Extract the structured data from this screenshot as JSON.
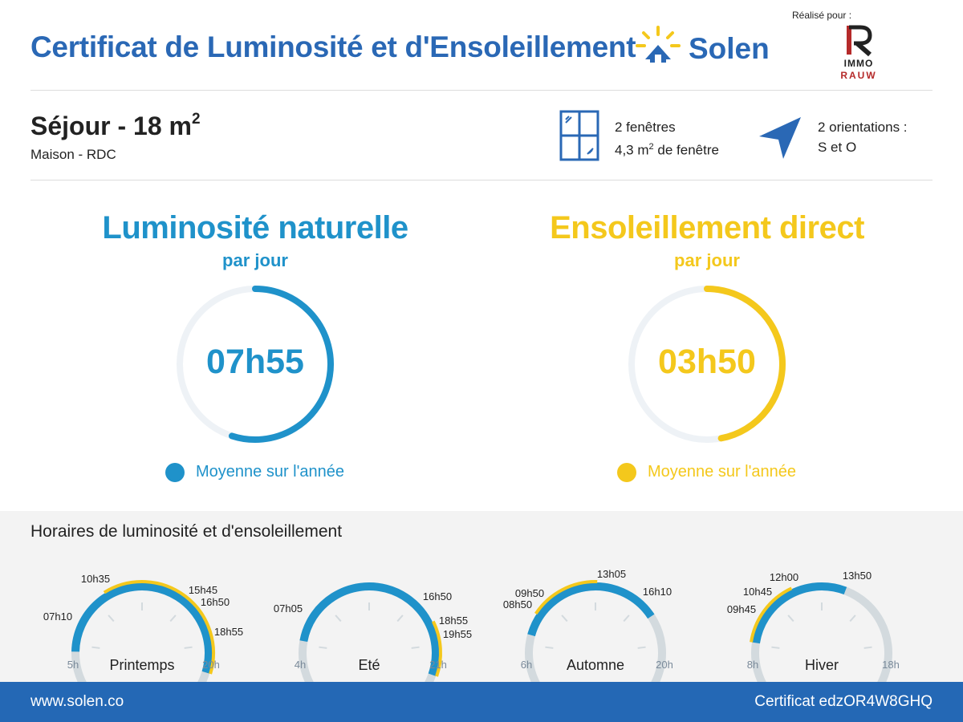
{
  "header": {
    "title": "Certificat de Luminosité et d'Ensoleillement",
    "brand": "Solen",
    "realise_pour": "Réalisé pour :",
    "client_logo_line1": "IMMO",
    "client_logo_line2": "RAUW"
  },
  "room": {
    "name": "Séjour - 18 m",
    "name_sup": "2",
    "sub": "Maison - RDC"
  },
  "windows": {
    "line1": "2 fenêtres",
    "line2_pre": "4,3 m",
    "line2_sup": "2",
    "line2_post": " de fenêtre"
  },
  "orientation": {
    "line1": "2 orientations :",
    "line2": "S et O"
  },
  "luminosite": {
    "title": "Luminosité naturelle",
    "sub": "par jour",
    "value": "07h55",
    "fraction": 0.55,
    "legend": "Moyenne sur l'année",
    "color": "#1f92ca"
  },
  "ensoleillement": {
    "title": "Ensoleillement direct",
    "sub": "par jour",
    "value": "03h50",
    "fraction": 0.47,
    "legend": "Moyenne sur l'année",
    "color": "#f4c81c"
  },
  "schedule": {
    "title": "Horaires de luminosité et d'ensoleillement",
    "seasons": [
      {
        "name": "Printemps",
        "min": 5,
        "max": 20,
        "min_label": "5h",
        "max_label": "20h",
        "blue": [
          7.17,
          18.92
        ],
        "yellow": [
          10.58,
          18.92
        ],
        "labels": [
          "07h10",
          "10h35",
          "15h45",
          "16h50",
          "18h55"
        ]
      },
      {
        "name": "Eté",
        "min": 4,
        "max": 21,
        "min_label": "4h",
        "max_label": "21h",
        "blue": [
          7.08,
          19.92
        ],
        "yellow": [
          16.83,
          19.92
        ],
        "labels": [
          "07h05",
          "16h50",
          "18h55",
          "19h55"
        ]
      },
      {
        "name": "Automne",
        "min": 6,
        "max": 20,
        "min_label": "6h",
        "max_label": "20h",
        "blue": [
          8.83,
          16.17
        ],
        "yellow": [
          9.83,
          13.08
        ],
        "labels": [
          "09h50",
          "08h50",
          "13h05",
          "16h10"
        ]
      },
      {
        "name": "Hiver",
        "min": 8,
        "max": 18,
        "min_label": "8h",
        "max_label": "18h",
        "blue": [
          9.75,
          13.83
        ],
        "yellow": [
          9.75,
          12.0
        ],
        "labels": [
          "12h00",
          "13h50",
          "10h45",
          "09h45"
        ]
      }
    ]
  },
  "footer": {
    "website": "www.solen.co",
    "certificate": "Certificat edzOR4W8GHQ"
  }
}
